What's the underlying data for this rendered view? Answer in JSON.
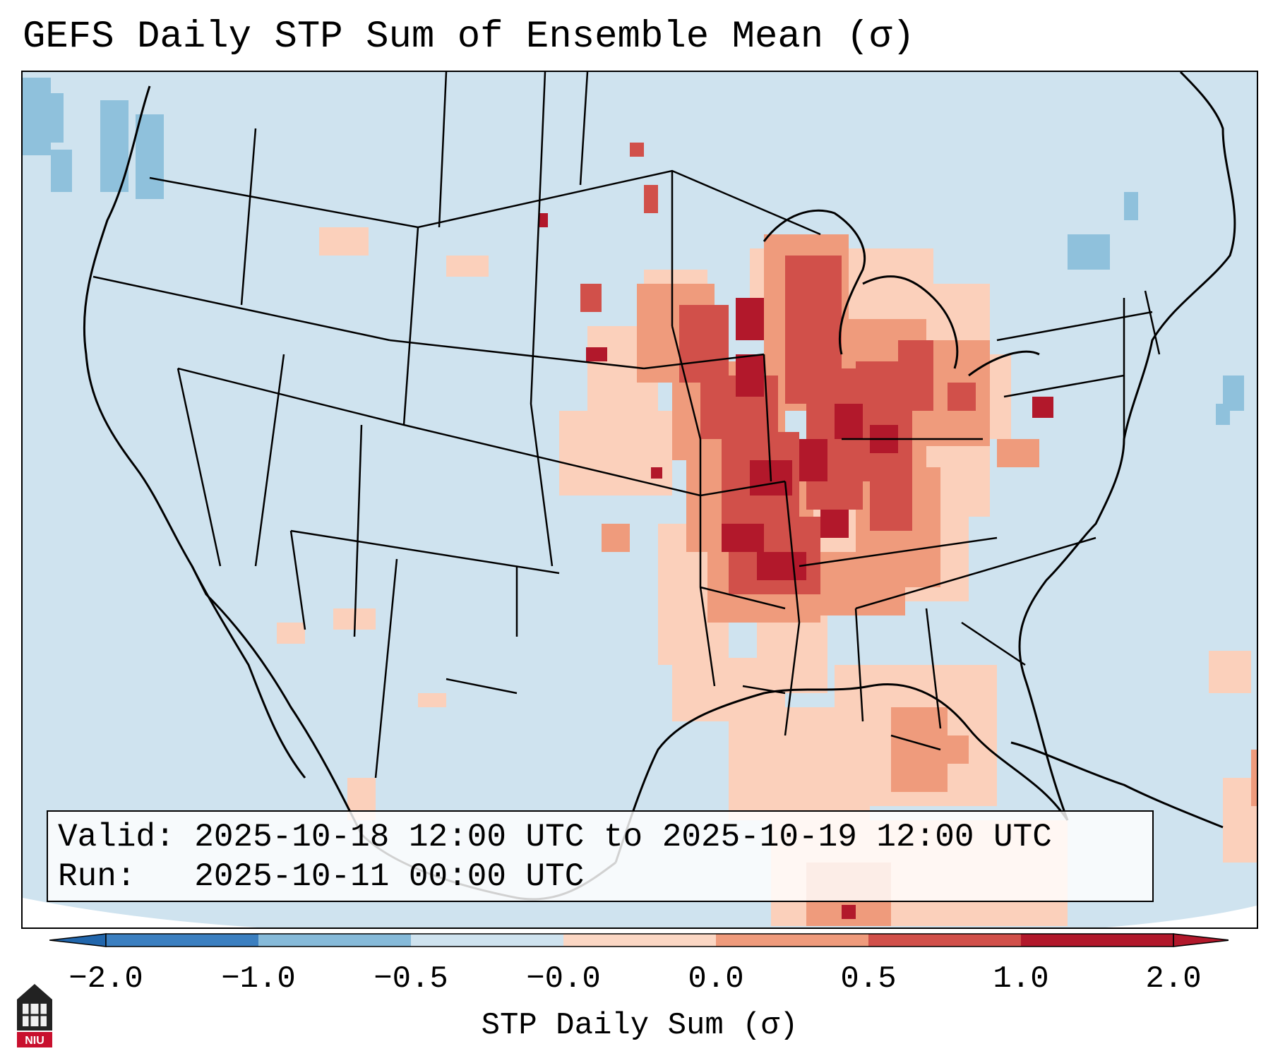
{
  "title": "GEFS Daily STP Sum of Ensemble Mean (σ)",
  "info": {
    "valid_label": "Valid:",
    "valid_value": "2025-10-18 12:00 UTC to 2025-10-19 12:00 UTC",
    "run_label": "Run:",
    "run_value": "2025-10-11 00:00 UTC"
  },
  "colorbar": {
    "label": "STP Daily Sum (σ)",
    "ticks": [
      "−2.0",
      "−1.0",
      "−0.5",
      "−0.0",
      "0.0",
      "0.5",
      "1.0",
      "2.0"
    ],
    "colors": [
      "#3b7fc0",
      "#86bad9",
      "#cfe3ef",
      "#f6f6f6",
      "#fbd7c4",
      "#ef9b7c",
      "#d1504a",
      "#b2182b"
    ],
    "under_color": "#2166ac",
    "over_color": "#b2182b"
  },
  "logo": {
    "text": "NIU",
    "color": "#c8102e"
  }
}
